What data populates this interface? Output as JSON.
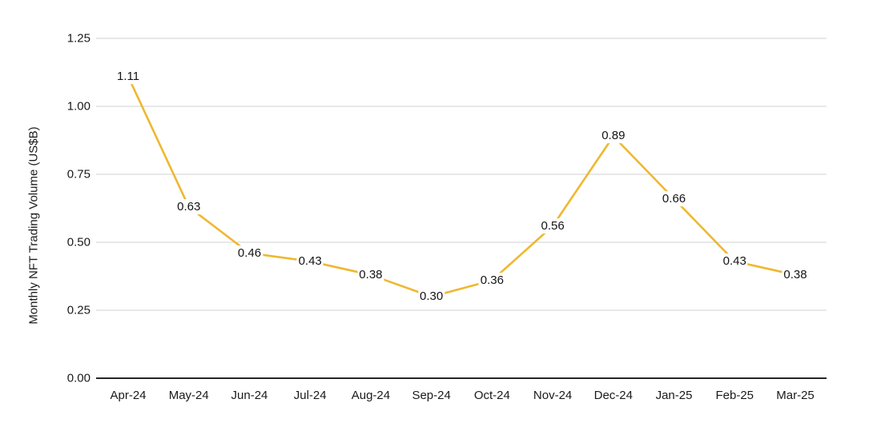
{
  "chart_data": {
    "type": "line",
    "categories": [
      "Apr-24",
      "May-24",
      "Jun-24",
      "Jul-24",
      "Aug-24",
      "Sep-24",
      "Oct-24",
      "Nov-24",
      "Dec-24",
      "Jan-25",
      "Feb-25",
      "Mar-25"
    ],
    "values": [
      1.11,
      0.63,
      0.46,
      0.43,
      0.38,
      0.3,
      0.36,
      0.56,
      0.89,
      0.66,
      0.43,
      0.38
    ],
    "data_labels": [
      "1.11",
      "0.63",
      "0.46",
      "0.43",
      "0.38",
      "0.30",
      "0.36",
      "0.56",
      "0.89",
      "0.66",
      "0.43",
      "0.38"
    ],
    "title": "",
    "xlabel": "",
    "ylabel": "Monthly NFT Trading Volume (US$B)",
    "ylim": [
      0,
      1.25
    ],
    "ytick_step": 0.25,
    "ytick_labels": [
      "0.00",
      "0.25",
      "0.50",
      "0.75",
      "1.00",
      "1.25"
    ],
    "grid": true,
    "legend_position": "none"
  },
  "colors": {
    "line": "#EEB830",
    "grid": "#DADADA",
    "axis": "#262626",
    "text": "#1A1A1A",
    "background": "#FFFFFF"
  }
}
